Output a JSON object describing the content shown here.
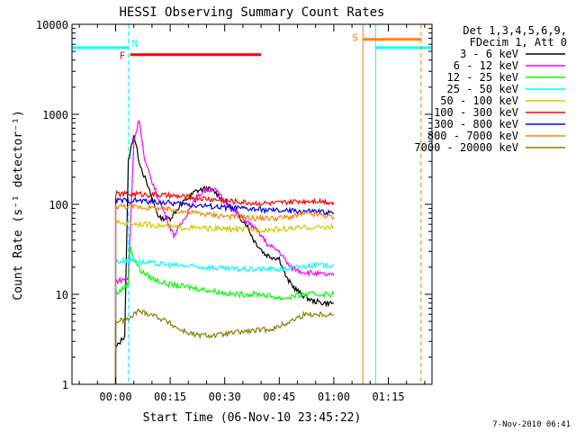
{
  "chart_data": {
    "type": "line",
    "title": "HESSI Observing Summary Count Rates",
    "xlabel": "Start Time (06-Nov-10 23:45:22)",
    "ylabel": "Count Rate (s⁻¹ detector⁻¹)",
    "footer": "7-Nov-2010 06:41",
    "y_scale": "log",
    "ylim": [
      1,
      10000
    ],
    "xlim_minutes": [
      -12,
      87
    ],
    "y_ticks": [
      {
        "value": 1,
        "label": "1"
      },
      {
        "value": 10,
        "label": "10"
      },
      {
        "value": 100,
        "label": "100"
      },
      {
        "value": 1000,
        "label": "1000"
      },
      {
        "value": 10000,
        "label": "10000"
      }
    ],
    "x_ticks": [
      {
        "value": 0,
        "label": "00:00"
      },
      {
        "value": 15,
        "label": "00:15"
      },
      {
        "value": 30,
        "label": "00:30"
      },
      {
        "value": 45,
        "label": "00:45"
      },
      {
        "value": 60,
        "label": "01:00"
      },
      {
        "value": 75,
        "label": "01:15"
      }
    ],
    "legend": {
      "header": [
        "Det 1,3,4,5,6,9,",
        "FDecim 1, Att 0"
      ],
      "placement": "right",
      "items": [
        {
          "label": "3 - 6 keV",
          "color": "#000000"
        },
        {
          "label": "6 - 12 keV",
          "color": "#ff00ff"
        },
        {
          "label": "12 - 25 keV",
          "color": "#00ff00"
        },
        {
          "label": "25 - 50 keV",
          "color": "#00ffff"
        },
        {
          "label": "50 - 100 keV",
          "color": "#cccc00"
        },
        {
          "label": "100 - 300 keV",
          "color": "#ff0000"
        },
        {
          "label": "300 - 800 keV",
          "color": "#0000ff"
        },
        {
          "label": "800 - 7000 keV",
          "color": "#ff8000"
        },
        {
          "label": "7000 - 20000 keV",
          "color": "#808000"
        }
      ]
    },
    "flags": [
      {
        "label": "N",
        "color": "#00ffff",
        "segments": [
          [
            -12,
            3.5
          ],
          [
            71.5,
            87
          ]
        ],
        "level": 5500,
        "boundaries": [
          -12,
          3.5,
          71.5,
          87
        ]
      },
      {
        "label": "F",
        "color": "#ff0000",
        "segments": [
          [
            4,
            40
          ]
        ],
        "level": 4600
      },
      {
        "label": "S",
        "color": "#ff8000",
        "segments": [
          [
            68,
            84
          ]
        ],
        "level": 6800,
        "boundaries": [
          68,
          84
        ]
      }
    ],
    "series": [
      {
        "name": "3 - 6 keV",
        "color": "#000000",
        "points": [
          [
            0,
            2.5
          ],
          [
            2.5,
            3.5
          ],
          [
            3.5,
            300
          ],
          [
            5,
            600
          ],
          [
            6.5,
            300
          ],
          [
            9,
            150
          ],
          [
            12,
            70
          ],
          [
            15,
            70
          ],
          [
            18,
            100
          ],
          [
            22,
            140
          ],
          [
            25,
            150
          ],
          [
            27,
            140
          ],
          [
            30,
            110
          ],
          [
            33,
            80
          ],
          [
            36,
            60
          ],
          [
            38,
            40
          ],
          [
            41,
            28
          ],
          [
            43,
            26
          ],
          [
            45,
            25
          ],
          [
            47,
            15
          ],
          [
            49,
            12
          ],
          [
            51,
            10
          ],
          [
            54,
            8.5
          ],
          [
            57,
            8
          ],
          [
            60,
            8
          ]
        ]
      },
      {
        "name": "6 - 12 keV",
        "color": "#ff00ff",
        "points": [
          [
            0,
            14
          ],
          [
            3.5,
            15
          ],
          [
            5,
            500
          ],
          [
            6.5,
            900
          ],
          [
            8,
            300
          ],
          [
            11,
            140
          ],
          [
            14,
            70
          ],
          [
            16,
            45
          ],
          [
            18,
            60
          ],
          [
            21,
            100
          ],
          [
            24,
            140
          ],
          [
            27,
            150
          ],
          [
            29,
            120
          ],
          [
            32,
            90
          ],
          [
            35,
            70
          ],
          [
            38,
            55
          ],
          [
            40,
            45
          ],
          [
            42,
            35
          ],
          [
            45,
            30
          ],
          [
            48,
            20
          ],
          [
            51,
            18
          ],
          [
            55,
            17
          ],
          [
            60,
            16
          ]
        ]
      },
      {
        "name": "12 - 25 keV",
        "color": "#00ff00",
        "points": [
          [
            0,
            10
          ],
          [
            3.5,
            13
          ],
          [
            4,
            35
          ],
          [
            5,
            25
          ],
          [
            7,
            18
          ],
          [
            10,
            15
          ],
          [
            14,
            13
          ],
          [
            20,
            12
          ],
          [
            26,
            11
          ],
          [
            32,
            10
          ],
          [
            40,
            10
          ],
          [
            46,
            9
          ],
          [
            52,
            10
          ],
          [
            60,
            10
          ]
        ]
      },
      {
        "name": "25 - 50 keV",
        "color": "#00ffff",
        "points": [
          [
            0,
            23
          ],
          [
            4,
            24
          ],
          [
            6,
            23
          ],
          [
            10,
            22
          ],
          [
            16,
            21
          ],
          [
            24,
            20
          ],
          [
            32,
            19
          ],
          [
            40,
            19
          ],
          [
            46,
            19
          ],
          [
            50,
            20
          ],
          [
            54,
            21
          ],
          [
            60,
            21
          ]
        ]
      },
      {
        "name": "50 - 100 keV",
        "color": "#cccc00",
        "points": [
          [
            0,
            62
          ],
          [
            4,
            62
          ],
          [
            8,
            60
          ],
          [
            16,
            56
          ],
          [
            24,
            54
          ],
          [
            32,
            53
          ],
          [
            40,
            52
          ],
          [
            46,
            53
          ],
          [
            52,
            55
          ],
          [
            60,
            56
          ]
        ]
      },
      {
        "name": "100 - 300 keV",
        "color": "#ff0000",
        "points": [
          [
            0,
            130
          ],
          [
            6,
            130
          ],
          [
            14,
            125
          ],
          [
            22,
            118
          ],
          [
            30,
            110
          ],
          [
            38,
            103
          ],
          [
            44,
            102
          ],
          [
            50,
            108
          ],
          [
            55,
            110
          ],
          [
            60,
            105
          ]
        ]
      },
      {
        "name": "300 - 800 keV",
        "color": "#0000ff",
        "points": [
          [
            0,
            110
          ],
          [
            6,
            110
          ],
          [
            14,
            104
          ],
          [
            22,
            98
          ],
          [
            30,
            92
          ],
          [
            38,
            88
          ],
          [
            44,
            85
          ],
          [
            50,
            84
          ],
          [
            55,
            83
          ],
          [
            60,
            80
          ]
        ]
      },
      {
        "name": "800 - 7000 keV",
        "color": "#ff8000",
        "points": [
          [
            0,
            95
          ],
          [
            6,
            94
          ],
          [
            14,
            88
          ],
          [
            22,
            80
          ],
          [
            30,
            74
          ],
          [
            38,
            70
          ],
          [
            44,
            70
          ],
          [
            48,
            72
          ],
          [
            52,
            78
          ],
          [
            56,
            76
          ],
          [
            60,
            72
          ]
        ]
      },
      {
        "name": "7000 - 20000 keV",
        "color": "#808000",
        "points": [
          [
            0,
            5
          ],
          [
            3.5,
            5.2
          ],
          [
            6,
            6.5
          ],
          [
            10,
            6
          ],
          [
            14,
            5
          ],
          [
            18,
            4
          ],
          [
            22,
            3.5
          ],
          [
            28,
            3.5
          ],
          [
            34,
            3.8
          ],
          [
            40,
            4
          ],
          [
            44,
            4.2
          ],
          [
            48,
            5
          ],
          [
            52,
            6
          ],
          [
            56,
            6
          ],
          [
            60,
            6
          ]
        ]
      }
    ]
  }
}
